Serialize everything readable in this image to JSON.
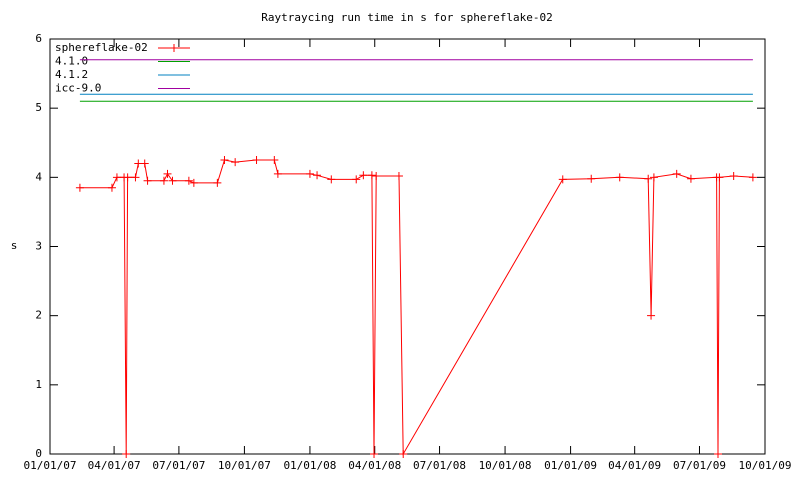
{
  "chart_data": {
    "type": "line",
    "title": "Raytraycing run time in s for sphereflake-02",
    "y_label": "s",
    "xlim": [
      "01/01/07",
      "10/01/09"
    ],
    "xticks": [
      "01/01/07",
      "04/01/07",
      "07/01/07",
      "10/01/07",
      "01/01/08",
      "04/01/08",
      "07/01/08",
      "10/01/08",
      "01/01/09",
      "04/01/09",
      "07/01/09",
      "10/01/09"
    ],
    "ylim": [
      0,
      6
    ],
    "yticks": [
      0,
      1,
      2,
      3,
      4,
      5,
      6
    ],
    "legend": "top-left",
    "series": [
      {
        "name": "sphereflake-02",
        "color": "#ff0000",
        "markers": true,
        "x": [
          "02/12/07",
          "03/29/07",
          "04/05/07",
          "04/15/07",
          "04/18/07",
          "04/20/07",
          "05/01/07",
          "05/05/07",
          "05/14/07",
          "05/18/07",
          "06/10/07",
          "06/15/07",
          "06/22/07",
          "07/15/07",
          "07/22/07",
          "08/24/07",
          "09/03/07",
          "09/18/07",
          "10/18/07",
          "11/12/07",
          "11/17/07",
          "01/01/08",
          "01/11/08",
          "01/31/08",
          "03/06/08",
          "03/16/08",
          "03/28/08",
          "03/31/08",
          "04/03/08",
          "05/05/08",
          "05/11/08",
          "12/21/08",
          "01/30/09",
          "03/11/09",
          "04/20/09",
          "04/24/09",
          "04/28/09",
          "05/30/09",
          "06/19/09",
          "07/25/09",
          "07/27/09",
          "07/29/09",
          "08/18/09",
          "09/14/09"
        ],
        "values": [
          3.85,
          3.85,
          4.0,
          4.0,
          0,
          4.0,
          4.0,
          4.2,
          4.2,
          3.95,
          3.95,
          4.05,
          3.95,
          3.95,
          3.92,
          3.92,
          4.25,
          4.22,
          4.25,
          4.25,
          4.05,
          4.05,
          4.03,
          3.97,
          3.97,
          4.03,
          4.03,
          0,
          4.02,
          4.02,
          0,
          3.97,
          3.98,
          4.0,
          3.98,
          2.0,
          4.0,
          4.05,
          3.98,
          4.0,
          0,
          4.0,
          4.02,
          4.0
        ]
      },
      {
        "name": "4.1.0",
        "color": "#00a000",
        "x": [
          "02/12/07",
          "09/14/09"
        ],
        "values": [
          5.1,
          5.1
        ]
      },
      {
        "name": "4.1.2",
        "color": "#0080c0",
        "x": [
          "02/12/07",
          "09/14/09"
        ],
        "values": [
          5.2,
          5.2
        ]
      },
      {
        "name": "icc-9.0",
        "color": "#a000a0",
        "x": [
          "02/12/07",
          "09/14/09"
        ],
        "values": [
          5.7,
          5.7
        ]
      }
    ]
  }
}
